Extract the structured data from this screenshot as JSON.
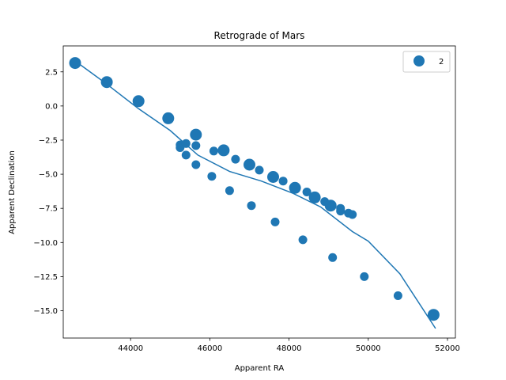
{
  "chart_data": {
    "type": "scatter",
    "title": "Retrograde of Mars",
    "xlabel": "Apparent RA",
    "ylabel": "Apparent Declination",
    "xlim": [
      42300,
      52200
    ],
    "ylim": [
      -17.0,
      4.4
    ],
    "x_ticks": [
      44000,
      46000,
      48000,
      50000,
      52000
    ],
    "y_ticks": [
      2.5,
      0.0,
      -2.5,
      -5.0,
      -7.5,
      -10.0,
      -12.5,
      -15.0
    ],
    "x_tick_labels": [
      "44000",
      "46000",
      "48000",
      "50000",
      "52000"
    ],
    "y_tick_labels": [
      "2.5",
      "0.0",
      "−2.5",
      "−5.0",
      "−7.5",
      "−10.0",
      "−12.5",
      "−15.0"
    ],
    "grid": false,
    "legend": {
      "placement": "top-right",
      "entries": [
        "2"
      ]
    },
    "color": "#1f77b4",
    "line": {
      "x": [
        42600,
        43400,
        44200,
        45000,
        45700,
        46500,
        47300,
        48100,
        48800,
        49600,
        50000,
        50800,
        51700
      ],
      "y": [
        3.3,
        1.6,
        -0.2,
        -1.8,
        -3.6,
        -4.8,
        -5.5,
        -6.4,
        -7.4,
        -9.2,
        -9.9,
        -12.3,
        -16.3
      ]
    },
    "series": [
      {
        "name": "2",
        "points": [
          {
            "x": 42600,
            "y": 3.15,
            "s": 1
          },
          {
            "x": 43400,
            "y": 1.75,
            "s": 1
          },
          {
            "x": 44200,
            "y": 0.35,
            "s": 1
          },
          {
            "x": 44950,
            "y": -0.9,
            "s": 1
          },
          {
            "x": 45250,
            "y": -2.85,
            "s": 0
          },
          {
            "x": 45250,
            "y": -3.05,
            "s": 0
          },
          {
            "x": 45400,
            "y": -2.75,
            "s": 0
          },
          {
            "x": 45400,
            "y": -3.6,
            "s": 0
          },
          {
            "x": 45650,
            "y": -2.1,
            "s": 1
          },
          {
            "x": 45650,
            "y": -2.9,
            "s": 0
          },
          {
            "x": 45650,
            "y": -4.3,
            "s": 0
          },
          {
            "x": 46050,
            "y": -5.15,
            "s": 0
          },
          {
            "x": 46100,
            "y": -3.3,
            "s": 0
          },
          {
            "x": 46350,
            "y": -3.25,
            "s": 1
          },
          {
            "x": 46500,
            "y": -6.2,
            "s": 0
          },
          {
            "x": 46650,
            "y": -3.9,
            "s": 0
          },
          {
            "x": 47000,
            "y": -4.3,
            "s": 1
          },
          {
            "x": 47050,
            "y": -7.3,
            "s": 0
          },
          {
            "x": 47250,
            "y": -4.7,
            "s": 0
          },
          {
            "x": 47600,
            "y": -5.2,
            "s": 1
          },
          {
            "x": 47650,
            "y": -8.5,
            "s": 0
          },
          {
            "x": 47850,
            "y": -5.5,
            "s": 0
          },
          {
            "x": 48150,
            "y": -6.0,
            "s": 1
          },
          {
            "x": 48350,
            "y": -9.8,
            "s": 0
          },
          {
            "x": 48450,
            "y": -6.3,
            "s": 0
          },
          {
            "x": 48650,
            "y": -6.7,
            "s": 1
          },
          {
            "x": 48900,
            "y": -7.0,
            "s": 0
          },
          {
            "x": 49050,
            "y": -7.3,
            "s": 1
          },
          {
            "x": 49100,
            "y": -11.1,
            "s": 0
          },
          {
            "x": 49300,
            "y": -7.5,
            "s": 0
          },
          {
            "x": 49300,
            "y": -7.7,
            "s": 0
          },
          {
            "x": 49500,
            "y": -7.85,
            "s": 0
          },
          {
            "x": 49600,
            "y": -7.95,
            "s": 0
          },
          {
            "x": 49900,
            "y": -12.5,
            "s": 0
          },
          {
            "x": 50750,
            "y": -13.9,
            "s": 0
          },
          {
            "x": 51650,
            "y": -15.3,
            "s": 1
          }
        ]
      }
    ]
  }
}
